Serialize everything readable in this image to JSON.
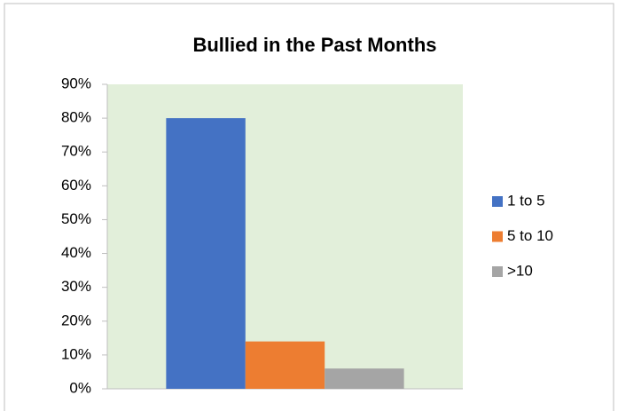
{
  "chart_data": {
    "type": "bar",
    "title": "Bullied in the Past Months",
    "categories": [
      null
    ],
    "series": [
      {
        "name": "1 to 5",
        "color": "#4472c4",
        "values": [
          80
        ]
      },
      {
        "name": "5 to 10",
        "color": "#ed7d31",
        "values": [
          14
        ]
      },
      {
        "name": ">10",
        "color": "#a5a5a5",
        "values": [
          6
        ]
      }
    ],
    "ylim": [
      0,
      90
    ],
    "yticks": [
      {
        "value": 0,
        "label": "0%"
      },
      {
        "value": 10,
        "label": "10%"
      },
      {
        "value": 20,
        "label": "20%"
      },
      {
        "value": 30,
        "label": "30%"
      },
      {
        "value": 40,
        "label": "40%"
      },
      {
        "value": 50,
        "label": "50%"
      },
      {
        "value": 60,
        "label": "60%"
      },
      {
        "value": 70,
        "label": "70%"
      },
      {
        "value": 80,
        "label": "80%"
      },
      {
        "value": 90,
        "label": "90%"
      }
    ],
    "grid": false,
    "legend": "right",
    "plot_background": "#e2efda"
  }
}
